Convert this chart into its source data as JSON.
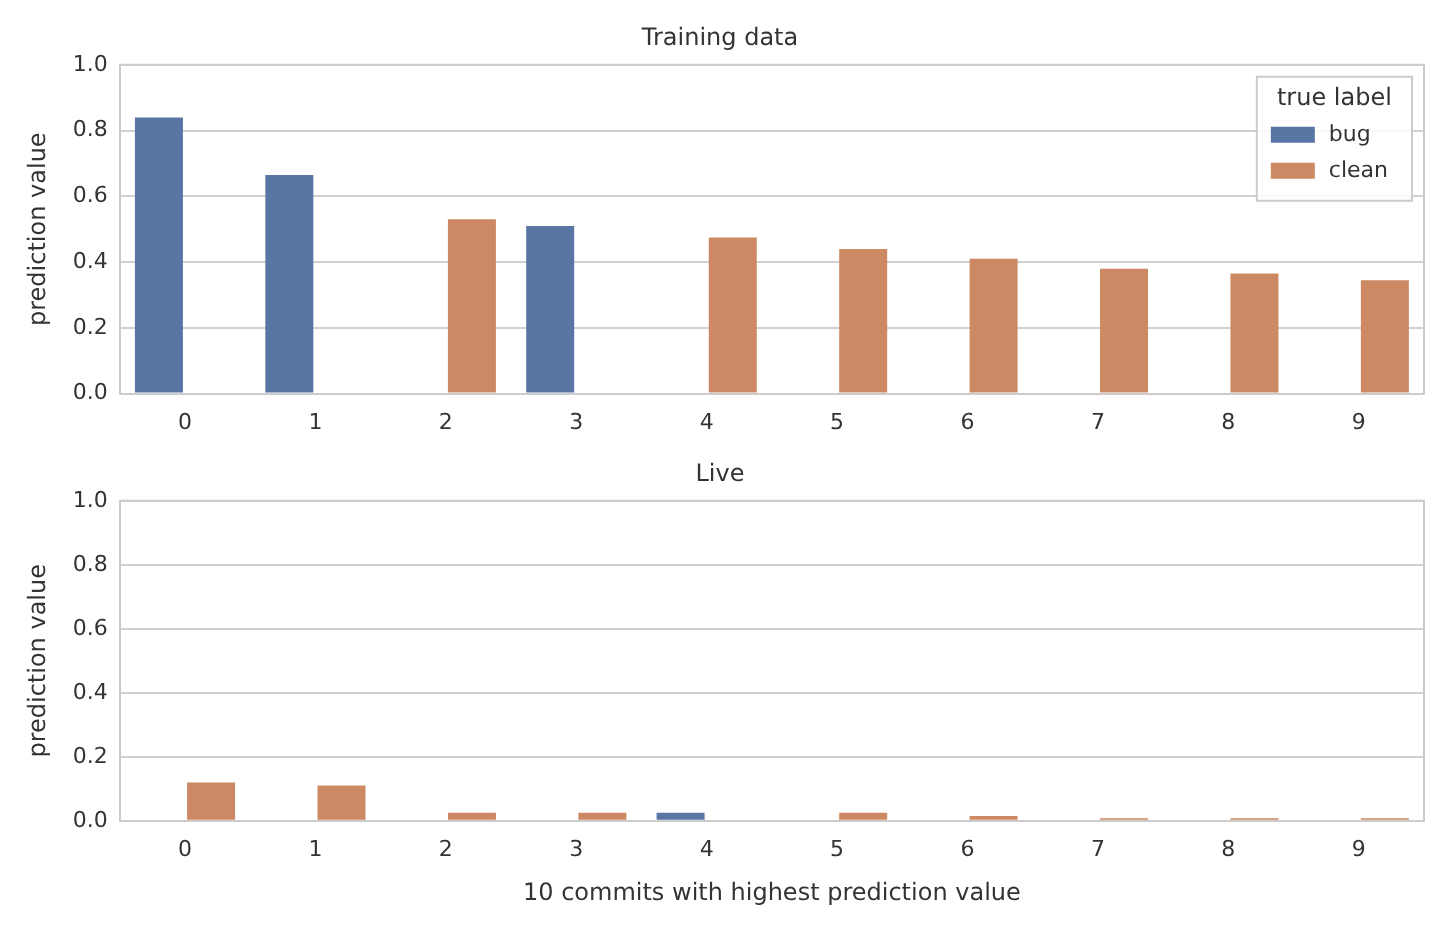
{
  "chart_data": [
    {
      "type": "bar",
      "title": "Training data",
      "ylabel": "prediction value",
      "categories": [
        "0",
        "1",
        "2",
        "3",
        "4",
        "5",
        "6",
        "7",
        "8",
        "9"
      ],
      "series": [
        {
          "name": "bug",
          "color": "#5875a4",
          "values": [
            0.84,
            0.665,
            null,
            0.51,
            null,
            null,
            null,
            null,
            null,
            null
          ]
        },
        {
          "name": "clean",
          "color": "#cc8963",
          "values": [
            null,
            null,
            0.53,
            null,
            0.475,
            0.44,
            0.41,
            0.38,
            0.365,
            0.345
          ]
        }
      ],
      "ylim": [
        0,
        1
      ],
      "yticks": [
        {
          "value": 0,
          "label": "0.0"
        },
        {
          "value": 0.2,
          "label": "0.2"
        },
        {
          "value": 0.4,
          "label": "0.4"
        },
        {
          "value": 0.6,
          "label": "0.6"
        },
        {
          "value": 0.8,
          "label": "0.8"
        },
        {
          "value": 1,
          "label": "1.0"
        }
      ],
      "grid": "y",
      "legend": "top right",
      "legend_title": "true label"
    },
    {
      "type": "bar",
      "title": "Live",
      "xlabel": "10 commits with highest prediction value",
      "ylabel": "prediction value",
      "categories": [
        "0",
        "1",
        "2",
        "3",
        "4",
        "5",
        "6",
        "7",
        "8",
        "9"
      ],
      "series": [
        {
          "color": "#5875a4",
          "values": [
            null,
            null,
            null,
            null,
            0.025,
            null,
            null,
            null,
            null,
            null
          ]
        },
        {
          "color": "#cc8963",
          "values": [
            0.12,
            0.11,
            0.025,
            0.025,
            null,
            0.025,
            0.015,
            0.008,
            0.008,
            0.008
          ]
        }
      ],
      "ylim": [
        0,
        1
      ],
      "yticks": [
        {
          "value": 0,
          "label": "0.0"
        },
        {
          "value": 0.2,
          "label": "0.2"
        },
        {
          "value": 0.4,
          "label": "0.4"
        },
        {
          "value": 0.6,
          "label": "0.6"
        },
        {
          "value": 0.8,
          "label": "0.8"
        },
        {
          "value": 1,
          "label": "1.0"
        }
      ],
      "grid": "y"
    }
  ]
}
